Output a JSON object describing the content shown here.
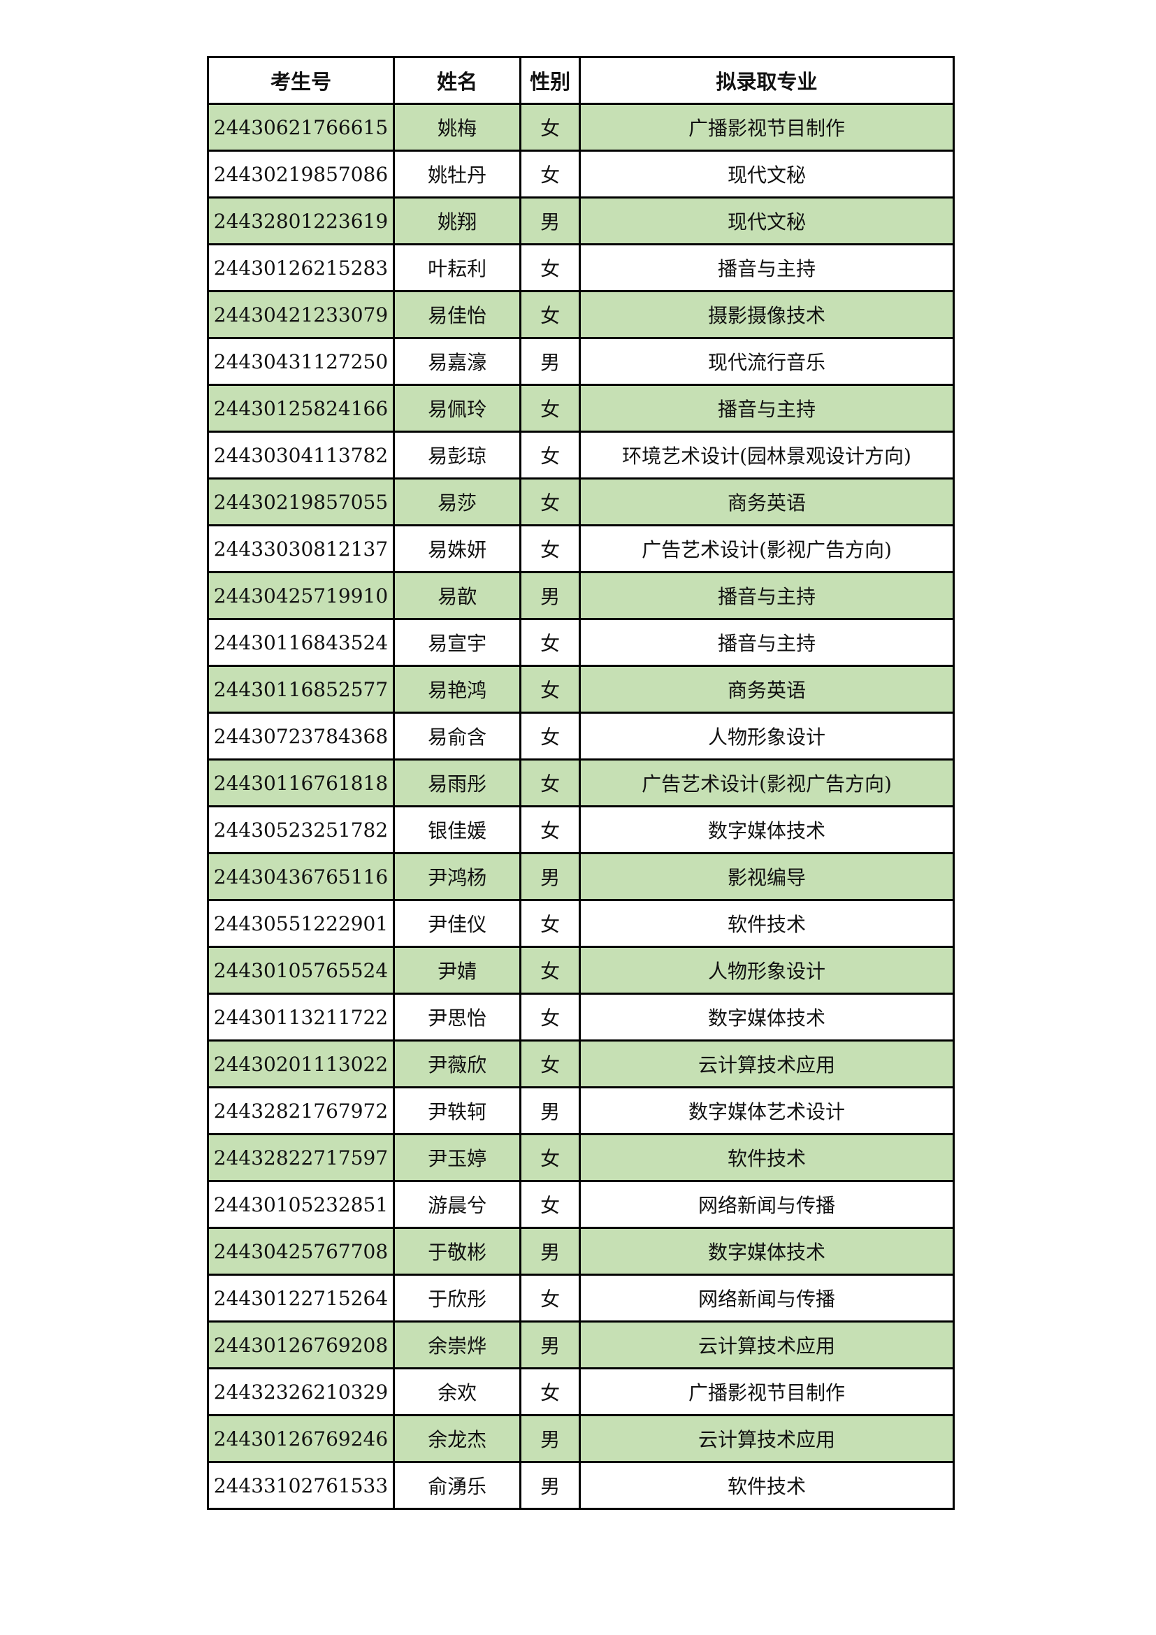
{
  "headers": [
    "考生号",
    "姓名",
    "性别",
    "拟录取专业"
  ],
  "accent_color": "#c6e0b4",
  "rows": [
    [
      "24430621766615",
      "姚梅",
      "女",
      "广播影视节目制作"
    ],
    [
      "24430219857086",
      "姚牡丹",
      "女",
      "现代文秘"
    ],
    [
      "24432801223619",
      "姚翔",
      "男",
      "现代文秘"
    ],
    [
      "24430126215283",
      "叶耘利",
      "女",
      "播音与主持"
    ],
    [
      "24430421233079",
      "易佳怡",
      "女",
      "摄影摄像技术"
    ],
    [
      "24430431127250",
      "易嘉濠",
      "男",
      "现代流行音乐"
    ],
    [
      "24430125824166",
      "易佩玲",
      "女",
      "播音与主持"
    ],
    [
      "24430304113782",
      "易彭琼",
      "女",
      "环境艺术设计(园林景观设计方向)"
    ],
    [
      "24430219857055",
      "易莎",
      "女",
      "商务英语"
    ],
    [
      "24433030812137",
      "易姝妍",
      "女",
      "广告艺术设计(影视广告方向)"
    ],
    [
      "24430425719910",
      "易歆",
      "男",
      "播音与主持"
    ],
    [
      "24430116843524",
      "易宣宇",
      "女",
      "播音与主持"
    ],
    [
      "24430116852577",
      "易艳鸿",
      "女",
      "商务英语"
    ],
    [
      "24430723784368",
      "易俞含",
      "女",
      "人物形象设计"
    ],
    [
      "24430116761818",
      "易雨彤",
      "女",
      "广告艺术设计(影视广告方向)"
    ],
    [
      "24430523251782",
      "银佳媛",
      "女",
      "数字媒体技术"
    ],
    [
      "24430436765116",
      "尹鸿杨",
      "男",
      "影视编导"
    ],
    [
      "24430551222901",
      "尹佳仪",
      "女",
      "软件技术"
    ],
    [
      "24430105765524",
      "尹婧",
      "女",
      "人物形象设计"
    ],
    [
      "24430113211722",
      "尹思怡",
      "女",
      "数字媒体技术"
    ],
    [
      "24430201113022",
      "尹薇欣",
      "女",
      "云计算技术应用"
    ],
    [
      "24432821767972",
      "尹轶轲",
      "男",
      "数字媒体艺术设计"
    ],
    [
      "24432822717597",
      "尹玉婷",
      "女",
      "软件技术"
    ],
    [
      "24430105232851",
      "游晨兮",
      "女",
      "网络新闻与传播"
    ],
    [
      "24430425767708",
      "于敬彬",
      "男",
      "数字媒体技术"
    ],
    [
      "24430122715264",
      "于欣彤",
      "女",
      "网络新闻与传播"
    ],
    [
      "24430126769208",
      "余崇烨",
      "男",
      "云计算技术应用"
    ],
    [
      "24432326210329",
      "余欢",
      "女",
      "广播影视节目制作"
    ],
    [
      "24430126769246",
      "余龙杰",
      "男",
      "云计算技术应用"
    ],
    [
      "24433102761533",
      "俞湧乐",
      "男",
      "软件技术"
    ]
  ]
}
